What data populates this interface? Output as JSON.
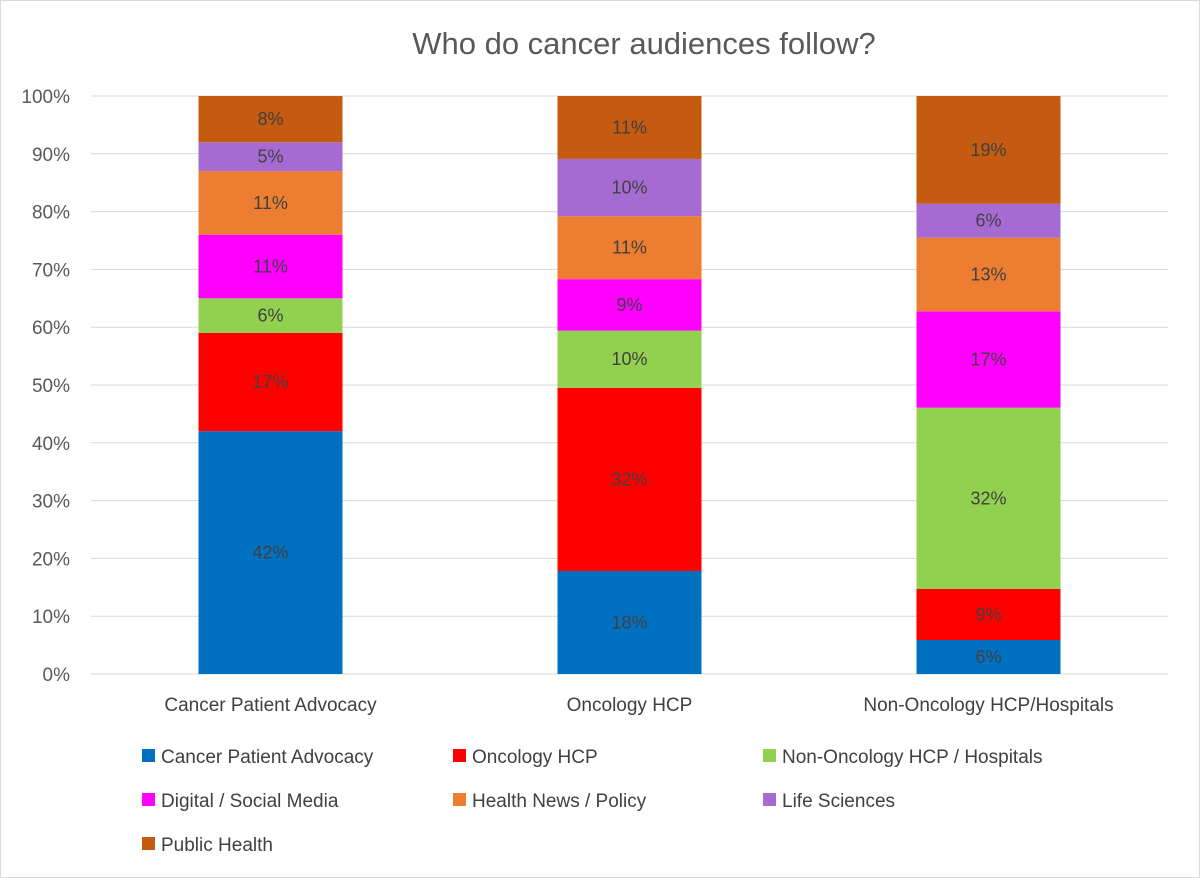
{
  "chart_data": {
    "type": "bar",
    "stacked": true,
    "percent_stacked": true,
    "title": "Who do cancer audiences follow?",
    "xlabel": "",
    "ylabel": "",
    "ylim": [
      0,
      100
    ],
    "y_ticks": [
      "0%",
      "10%",
      "20%",
      "30%",
      "40%",
      "50%",
      "60%",
      "70%",
      "80%",
      "90%",
      "100%"
    ],
    "categories": [
      "Cancer Patient Advocacy",
      "Oncology HCP",
      "Non-Oncology HCP/Hospitals"
    ],
    "grid": true,
    "legend_position": "bottom",
    "series": [
      {
        "name": "Cancer Patient Advocacy",
        "color": "#0070c0",
        "values": [
          42,
          18,
          6
        ],
        "labels": [
          "42%",
          "18%",
          "6%"
        ]
      },
      {
        "name": "Oncology HCP",
        "color": "#ff0000",
        "values": [
          17,
          32,
          9
        ],
        "labels": [
          "17%",
          "32%",
          "9%"
        ]
      },
      {
        "name": "Non-Oncology HCP / Hospitals",
        "color": "#92d050",
        "values": [
          6,
          10,
          32
        ],
        "labels": [
          "6%",
          "10%",
          "32%"
        ]
      },
      {
        "name": "Digital / Social Media",
        "color": "#ff00ff",
        "values": [
          11,
          9,
          17
        ],
        "labels": [
          "11%",
          "9%",
          "17%"
        ]
      },
      {
        "name": "Health News / Policy",
        "color": "#ed7d31",
        "values": [
          11,
          11,
          13
        ],
        "labels": [
          "11%",
          "11%",
          "13%"
        ]
      },
      {
        "name": "Life Sciences",
        "color": "#a66bd3",
        "values": [
          5,
          10,
          6
        ],
        "labels": [
          "5%",
          "10%",
          "6%"
        ]
      },
      {
        "name": "Public Health",
        "color": "#c55a11",
        "values": [
          8,
          11,
          19
        ],
        "labels": [
          "8%",
          "11%",
          "19%"
        ]
      }
    ]
  }
}
